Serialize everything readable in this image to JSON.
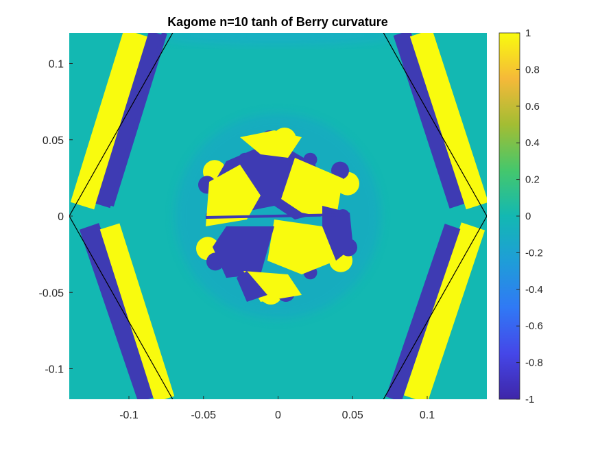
{
  "chart_data": {
    "type": "heatmap",
    "title": "Kagome n=10 tanh of Berry curvature",
    "xlabel": "",
    "ylabel": "",
    "xlim": [
      -0.14,
      0.14
    ],
    "ylim": [
      -0.12,
      0.12
    ],
    "xticks": [
      {
        "value": -0.1,
        "label": "-0.1"
      },
      {
        "value": -0.05,
        "label": "-0.05"
      },
      {
        "value": 0,
        "label": "0"
      },
      {
        "value": 0.05,
        "label": "0.05"
      },
      {
        "value": 0.1,
        "label": "0.1"
      }
    ],
    "yticks": [
      {
        "value": 0.1,
        "label": "0.1"
      },
      {
        "value": 0.05,
        "label": "0.05"
      },
      {
        "value": 0,
        "label": "0"
      },
      {
        "value": -0.05,
        "label": "-0.05"
      },
      {
        "value": -0.1,
        "label": "-0.1"
      }
    ],
    "colorbar": {
      "range": [
        -1,
        1
      ],
      "colormap": "parula",
      "ticks": [
        {
          "value": 1,
          "label": "1"
        },
        {
          "value": 0.8,
          "label": "0.8"
        },
        {
          "value": 0.6,
          "label": "0.6"
        },
        {
          "value": 0.4,
          "label": "0.4"
        },
        {
          "value": 0.2,
          "label": "0.2"
        },
        {
          "value": 0,
          "label": "0"
        },
        {
          "value": -0.2,
          "label": "-0.2"
        },
        {
          "value": -0.4,
          "label": "-0.4"
        },
        {
          "value": -0.6,
          "label": "-0.6"
        },
        {
          "value": -0.8,
          "label": "-0.8"
        },
        {
          "value": -1,
          "label": "-1"
        }
      ]
    },
    "brillouin_zone_hexagon": [
      [
        -0.14,
        0
      ],
      [
        -0.07,
        -0.1212
      ],
      [
        0.07,
        -0.1212
      ],
      [
        0.14,
        0
      ],
      [
        0.07,
        0.1212
      ],
      [
        -0.07,
        0.1212
      ]
    ],
    "grid": false,
    "colors": {
      "background_field": "#13b8b2",
      "positive": "#f9fb0e",
      "negative": "#3e3bb3",
      "outline": "#000000"
    }
  }
}
